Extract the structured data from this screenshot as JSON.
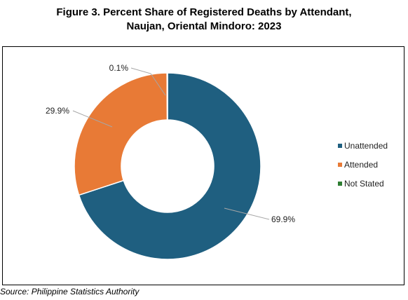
{
  "figure": {
    "title_line1": "Figure 3. Percent Share of Registered Deaths by Attendant,",
    "title_line2": "Naujan, Oriental Mindoro: 2023",
    "source": "Source: Philippine Statistics Authority"
  },
  "chart_data": {
    "type": "pie",
    "variant": "donut",
    "title": "Figure 3. Percent Share of Registered Deaths by Attendant, Naujan, Oriental Mindoro: 2023",
    "legend_position": "right",
    "slices": [
      {
        "name": "Unattended",
        "value": 69.9,
        "label": "69.9%",
        "color": "#1f5f80"
      },
      {
        "name": "Attended",
        "value": 29.9,
        "label": "29.9%",
        "color": "#e87a36"
      },
      {
        "name": "Not Stated",
        "value": 0.1,
        "label": "0.1%",
        "color": "#2e7d32"
      }
    ]
  }
}
